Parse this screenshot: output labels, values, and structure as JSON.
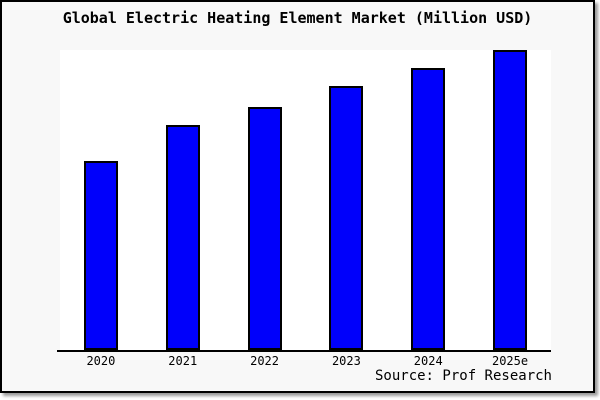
{
  "window": {
    "bg_color": "#f8f8f8",
    "plot_bg_color": "#ffffff",
    "frame_color": "#000000"
  },
  "chart": {
    "bar_fill": "#0000fb",
    "bar_border": "#000000",
    "axis_color": "#000000"
  },
  "chart_data": {
    "type": "bar",
    "title": "Global Electric Heating Element Market (Million USD)",
    "categories": [
      "2020",
      "2021",
      "2022",
      "2023",
      "2024",
      "2025e"
    ],
    "values": [
      63,
      75,
      81,
      88,
      94,
      100
    ],
    "xlabel": "",
    "ylabel": "",
    "ylim": [
      0,
      100
    ],
    "grid": false,
    "legend": false,
    "y_axis_visible": false,
    "source": "Source: Prof Research"
  }
}
